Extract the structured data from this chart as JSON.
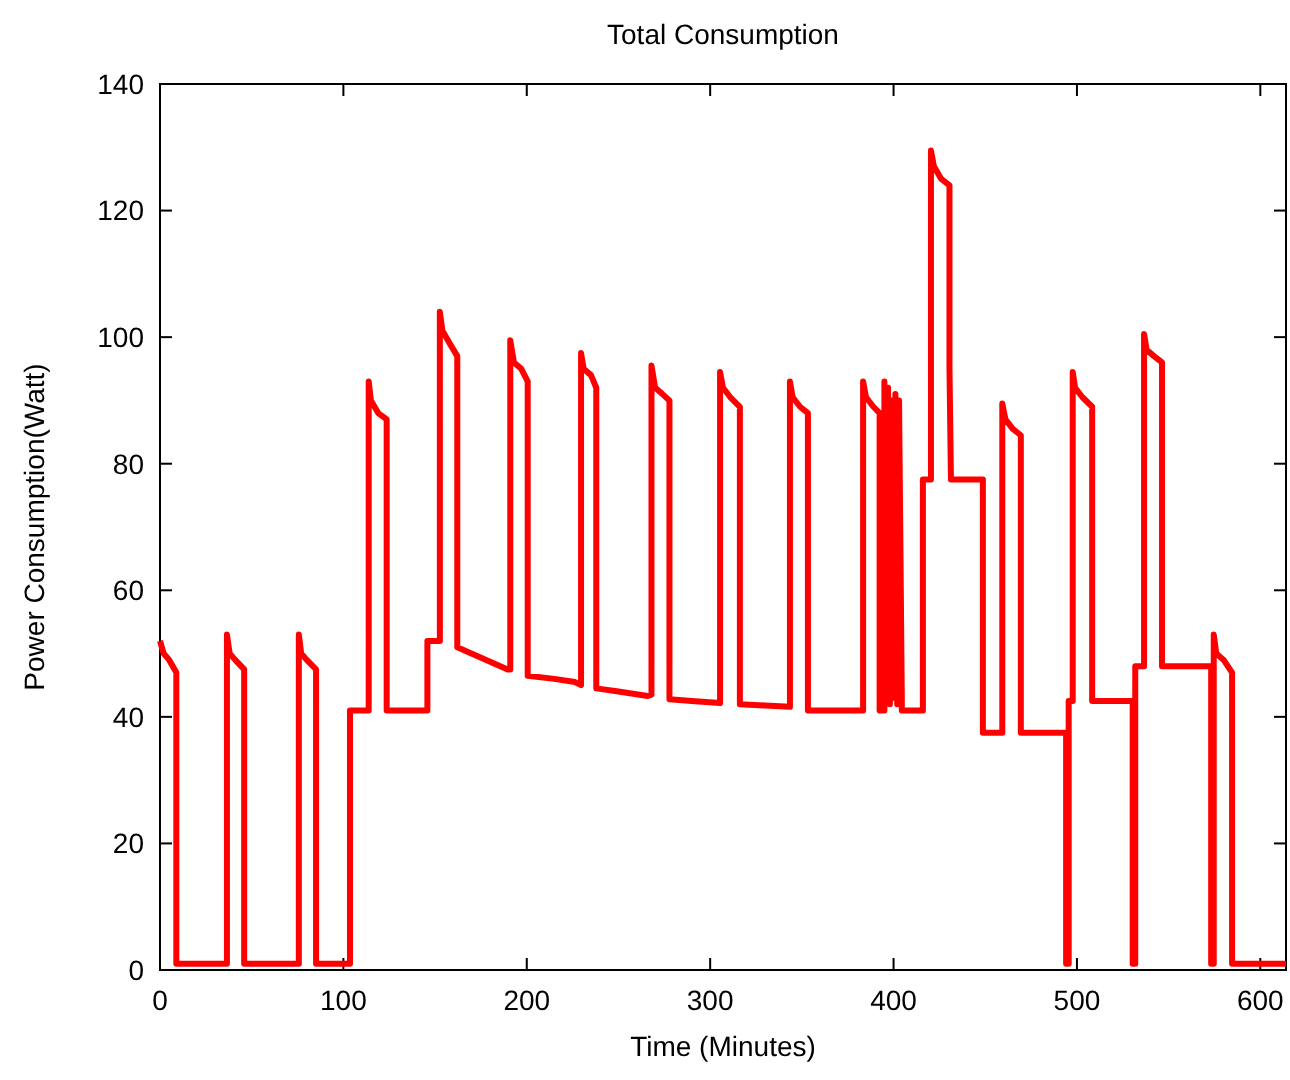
{
  "chart_data": {
    "type": "line",
    "title": "Total Consumption",
    "xlabel": "Time (Minutes)",
    "ylabel": "Power Consumption(Watt)",
    "xlim": [
      0,
      614
    ],
    "ylim": [
      0,
      140
    ],
    "xticks": [
      0,
      100,
      200,
      300,
      400,
      500,
      600
    ],
    "yticks": [
      0,
      20,
      40,
      60,
      80,
      100,
      120,
      140
    ],
    "grid": false,
    "marker": "none",
    "line_style": "solid",
    "series": [
      {
        "color": "#ff0000",
        "x": [
          0,
          2,
          5,
          8.9,
          8.9,
          36.5,
          36.5,
          38,
          41,
          45.9,
          45.9,
          75.7,
          75.7,
          77,
          80,
          85.1,
          85.1,
          103.6,
          103.6,
          113.8,
          113.8,
          115,
          119,
          123.6,
          123.6,
          145.8,
          145.8,
          152.6,
          152.6,
          154,
          158,
          162.1,
          162.1,
          189.6,
          191,
          191,
          193,
          197,
          200.5,
          200.5,
          215,
          226.3,
          229.6,
          229.6,
          231,
          235,
          237.9,
          237.9,
          250,
          266,
          268,
          268,
          270,
          274,
          277.8,
          277.8,
          290,
          305.4,
          305.4,
          307,
          311,
          316.2,
          316.2,
          330,
          343.5,
          343.5,
          345,
          349,
          353.3,
          353.3,
          383.4,
          383.4,
          385,
          389,
          392.4,
          392.4,
          395,
          395,
          396,
          397,
          398,
          399,
          400,
          401,
          402,
          403,
          404.5,
          404.5,
          416,
          416,
          420.4,
          420.4,
          422,
          426,
          430.5,
          430.5,
          431.3,
          448.7,
          448.7,
          459.3,
          459.3,
          461,
          465,
          469.4,
          469.4,
          494.1,
          494.1,
          495.5,
          495.5,
          497.7,
          497.7,
          499,
          503,
          508.3,
          508.3,
          530.4,
          530.4,
          531.8,
          531.8,
          536.6,
          536.6,
          538,
          542,
          546.4,
          546.4,
          573.2,
          573.2,
          574.6,
          574.6,
          576,
          580,
          584.6,
          584.6,
          614
        ],
        "values": [
          52,
          50,
          49,
          47,
          1,
          1,
          53,
          50,
          49,
          47.5,
          1,
          1,
          53,
          50,
          49,
          47.5,
          1,
          1,
          41,
          41,
          93,
          90,
          88,
          87,
          41,
          41,
          52,
          52,
          104,
          101,
          99,
          97,
          51,
          47.5,
          47.5,
          99.5,
          96,
          95,
          93,
          46.5,
          46,
          45.5,
          45,
          97.5,
          95,
          94,
          92,
          44.5,
          44,
          43.3,
          43.5,
          95.5,
          92,
          91,
          90,
          42.8,
          42.5,
          42.2,
          94.5,
          92,
          90.5,
          89,
          42,
          41.8,
          41.6,
          93,
          90.5,
          89,
          88,
          41,
          41,
          93,
          90.5,
          89,
          88,
          41,
          41,
          93,
          43,
          92,
          42,
          90,
          43,
          91,
          42,
          90,
          43,
          41,
          41,
          77.5,
          77.5,
          129.5,
          127,
          125,
          124,
          95,
          77.5,
          77.5,
          37.5,
          37.5,
          89.5,
          87,
          85.5,
          84.5,
          37.5,
          37.5,
          1,
          1,
          42.5,
          42.5,
          94.5,
          92,
          90.5,
          89,
          42.5,
          42.5,
          1,
          1,
          48,
          48,
          100.5,
          98,
          97,
          96,
          48,
          48,
          1,
          1,
          53,
          50,
          49,
          47,
          1,
          1
        ]
      }
    ]
  }
}
